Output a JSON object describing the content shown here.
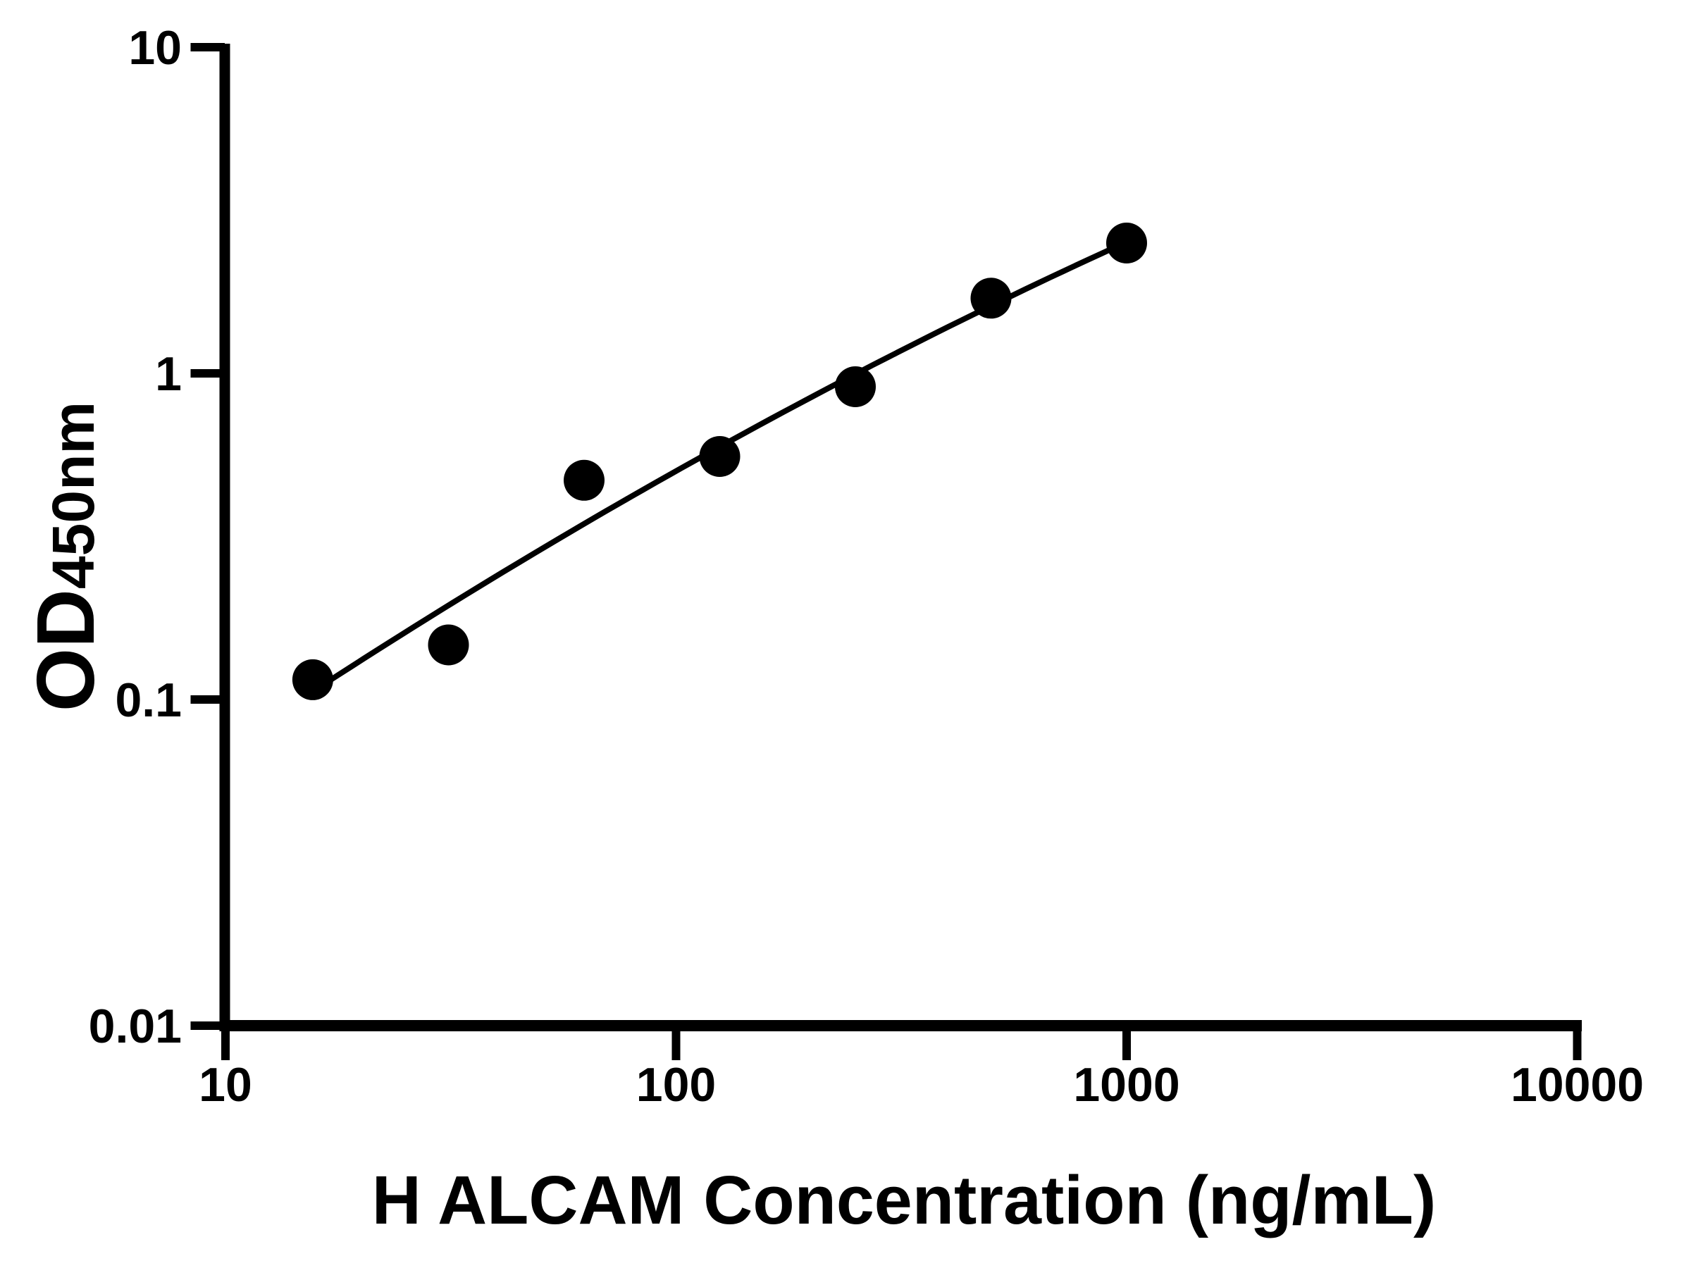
{
  "page": {
    "background": "#ffffff"
  },
  "chart_data": {
    "type": "scatter",
    "xlabel": "H ALCAM Concentration (ng/mL)",
    "ylabel_main": "OD",
    "ylabel_sub": "450nm",
    "x_scale": "log10",
    "y_scale": "log10",
    "xlim": [
      10,
      10000
    ],
    "ylim": [
      0.01,
      10
    ],
    "x_ticks": [
      10,
      100,
      1000,
      10000
    ],
    "x_tick_labels": [
      "10",
      "100",
      "1000",
      "10000"
    ],
    "y_ticks": [
      10,
      1,
      0.1,
      0.01
    ],
    "y_tick_labels": [
      "10",
      "1",
      "0.1",
      "0.01"
    ],
    "grid": false,
    "legend": null,
    "axis_color": "#000000",
    "series": [
      {
        "marker": "filled-circle",
        "color": "#000000",
        "trend_curve": true,
        "points": [
          {
            "x": 15.625,
            "y": 0.115
          },
          {
            "x": 31.25,
            "y": 0.147
          },
          {
            "x": 62.5,
            "y": 0.47
          },
          {
            "x": 125,
            "y": 0.556
          },
          {
            "x": 250,
            "y": 0.91
          },
          {
            "x": 500,
            "y": 1.7
          },
          {
            "x": 1000,
            "y": 2.51
          }
        ]
      }
    ]
  }
}
